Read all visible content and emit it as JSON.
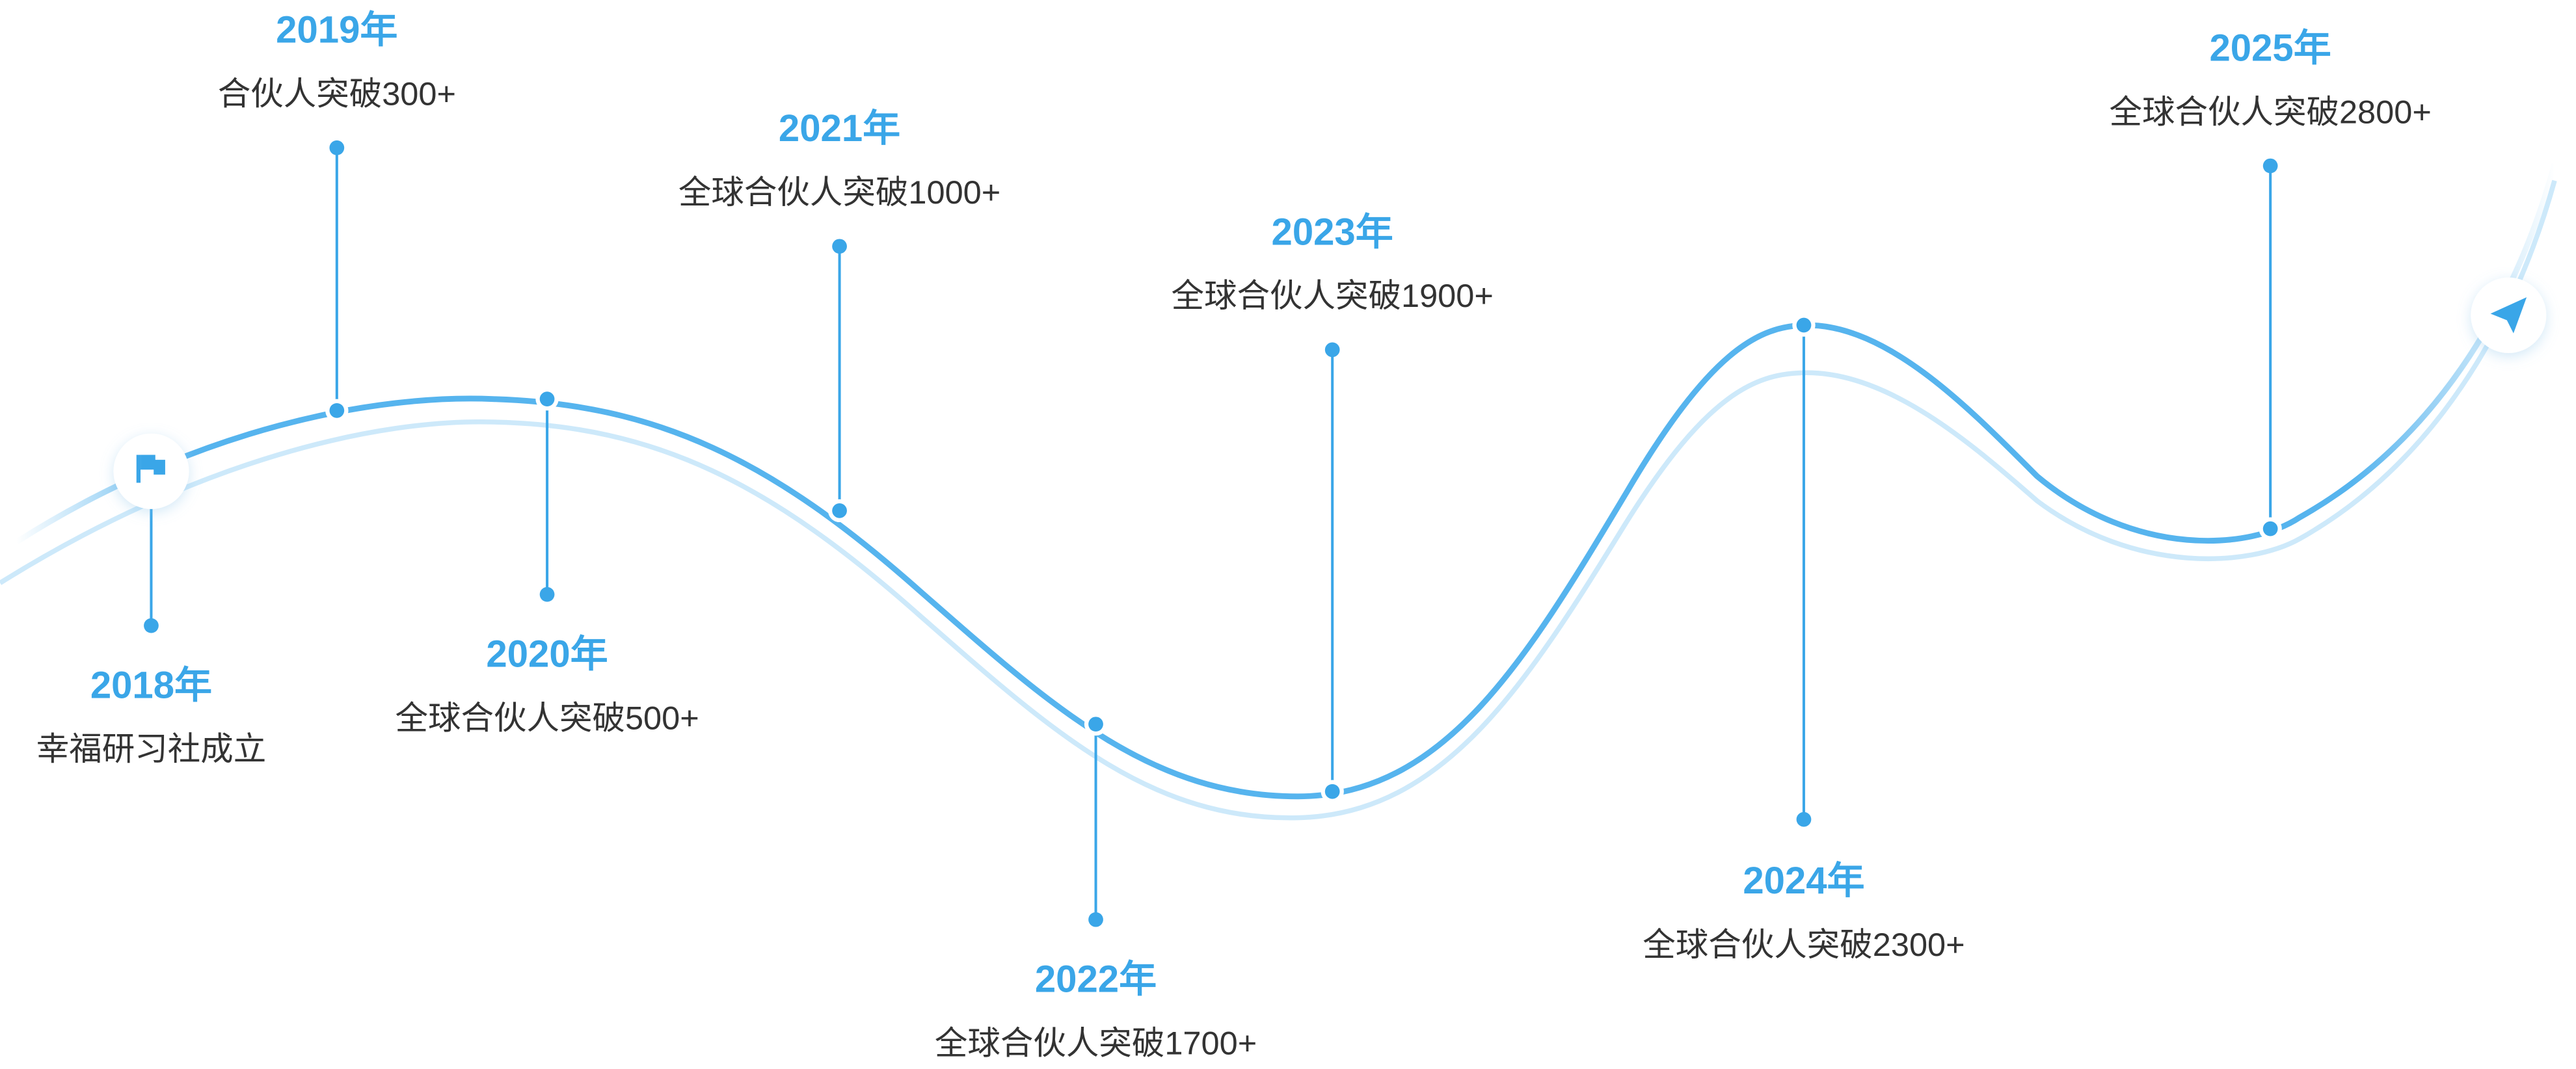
{
  "timeline": {
    "milestones": [
      {
        "year": "2018年",
        "text": "幸福研习社成立"
      },
      {
        "year": "2019年",
        "text": "合伙人突破300+"
      },
      {
        "year": "2020年",
        "text": "全球合伙人突破500+"
      },
      {
        "year": "2021年",
        "text": "全球合伙人突破1000+"
      },
      {
        "year": "2022年",
        "text": "全球合伙人突破1700+"
      },
      {
        "year": "2023年",
        "text": "全球合伙人突破1900+"
      },
      {
        "year": "2024年",
        "text": "全球合伙人突破2300+"
      },
      {
        "year": "2025年",
        "text": "全球合伙人突破2800+"
      }
    ]
  }
}
